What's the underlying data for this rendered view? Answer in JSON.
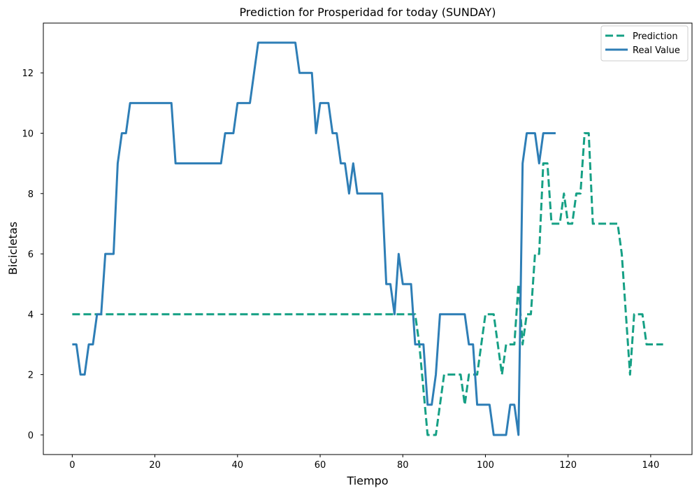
{
  "chart_data": {
    "type": "line",
    "title": "Prediction for Prosperidad for today (SUNDAY)",
    "xlabel": "Tiempo",
    "ylabel": "Bicicletas",
    "xlim": [
      -7,
      150
    ],
    "ylim": [
      -0.65,
      13.65
    ],
    "xticks": [
      0,
      20,
      40,
      60,
      80,
      100,
      120,
      140
    ],
    "yticks": [
      0,
      2,
      4,
      6,
      8,
      10,
      12
    ],
    "grid": false,
    "legend": "top-right",
    "series": [
      {
        "name": "Prediction",
        "color": "#16a085",
        "style": "dashed",
        "x": [
          0,
          83,
          84,
          86,
          87,
          88,
          89,
          90,
          91,
          92,
          93,
          94,
          95,
          96,
          97,
          98,
          99,
          100,
          101,
          102,
          103,
          104,
          105,
          106,
          107,
          108,
          109,
          110,
          111,
          112,
          113,
          114,
          115,
          116,
          117,
          118,
          119,
          120,
          121,
          122,
          123,
          124,
          125,
          126,
          127,
          128,
          129,
          130,
          131,
          132,
          133,
          134,
          135,
          136,
          137,
          138,
          139,
          140,
          141,
          142,
          143
        ],
        "values": [
          4,
          4,
          3,
          0,
          0,
          0,
          1,
          2,
          2,
          2,
          2,
          2,
          1,
          2,
          2,
          2,
          3,
          4,
          4,
          4,
          3,
          2,
          3,
          3,
          3,
          5,
          3,
          4,
          4,
          6,
          6,
          9,
          9,
          7,
          7,
          7,
          8,
          7,
          7,
          8,
          8,
          10,
          10,
          7,
          7,
          7,
          7,
          7,
          7,
          7,
          6,
          4,
          2,
          4,
          4,
          4,
          3,
          3,
          3,
          3,
          3
        ]
      },
      {
        "name": "Real Value",
        "color": "#2e7eb6",
        "style": "solid",
        "x": [
          0,
          1,
          2,
          3,
          4,
          5,
          6,
          7,
          8,
          9,
          10,
          11,
          12,
          13,
          14,
          15,
          16,
          17,
          18,
          19,
          20,
          21,
          22,
          23,
          24,
          25,
          26,
          27,
          28,
          29,
          30,
          31,
          32,
          33,
          34,
          35,
          36,
          37,
          38,
          39,
          40,
          41,
          42,
          43,
          44,
          45,
          46,
          47,
          48,
          49,
          50,
          51,
          52,
          53,
          54,
          55,
          56,
          57,
          58,
          59,
          60,
          61,
          62,
          63,
          64,
          65,
          66,
          67,
          68,
          69,
          70,
          71,
          72,
          73,
          74,
          75,
          76,
          77,
          78,
          79,
          80,
          81,
          82,
          83,
          84,
          85,
          86,
          87,
          88,
          89,
          90,
          91,
          92,
          93,
          94,
          95,
          96,
          97,
          98,
          99,
          100,
          101,
          102,
          103,
          104,
          105,
          106,
          107,
          108,
          109,
          110,
          111,
          112,
          113,
          114,
          115,
          116,
          117
        ],
        "values": [
          3,
          3,
          2,
          2,
          3,
          3,
          4,
          4,
          6,
          6,
          6,
          9,
          10,
          10,
          11,
          11,
          11,
          11,
          11,
          11,
          11,
          11,
          11,
          11,
          11,
          9,
          9,
          9,
          9,
          9,
          9,
          9,
          9,
          9,
          9,
          9,
          9,
          10,
          10,
          10,
          11,
          11,
          11,
          11,
          12,
          13,
          13,
          13,
          13,
          13,
          13,
          13,
          13,
          13,
          13,
          12,
          12,
          12,
          12,
          10,
          11,
          11,
          11,
          10,
          10,
          9,
          9,
          8,
          9,
          8,
          8,
          8,
          8,
          8,
          8,
          8,
          5,
          5,
          4,
          6,
          5,
          5,
          5,
          3,
          3,
          3,
          1,
          1,
          2,
          4,
          4,
          4,
          4,
          4,
          4,
          4,
          3,
          3,
          1,
          1,
          1,
          1,
          0,
          0,
          0,
          0,
          1,
          1,
          0,
          9,
          10,
          10,
          10,
          9,
          10,
          10,
          10,
          10
        ]
      }
    ]
  }
}
